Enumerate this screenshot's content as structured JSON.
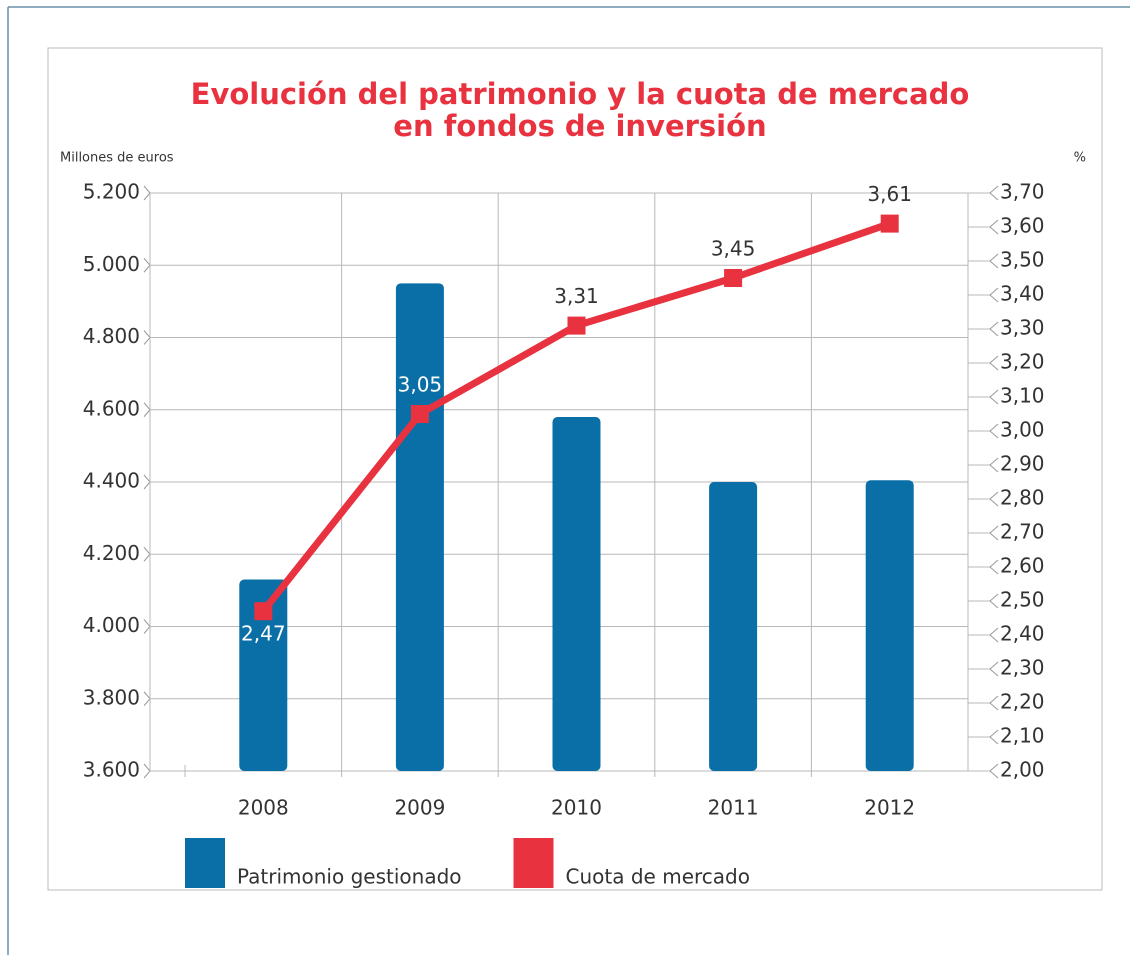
{
  "chart_data": {
    "type": "bar-line",
    "title": "Evolución del patrimonio y la cuota de mercado",
    "title_line2": "en fondos de inversión",
    "y_label": "Millones de euros",
    "y2_label": "%",
    "categories": [
      "2008",
      "2009",
      "2010",
      "2011",
      "2012"
    ],
    "series": [
      {
        "name": "Patrimonio gestionado",
        "color": "#0a6fa6",
        "type": "bar",
        "axis": "y",
        "values": [
          4130,
          4950,
          4580,
          4400,
          4405
        ]
      },
      {
        "name": "Cuota de mercado",
        "color": "#e8323f",
        "type": "line",
        "axis": "y2",
        "values": [
          2.47,
          3.05,
          3.31,
          3.45,
          3.61
        ],
        "value_labels": [
          "2,47",
          "3,05",
          "3,31",
          "3,45",
          "3,61"
        ]
      }
    ],
    "ylim": [
      3600,
      5200
    ],
    "yticks": [
      {
        "value": 3600,
        "label": "3.600"
      },
      {
        "value": 3800,
        "label": "3.800"
      },
      {
        "value": 4000,
        "label": "4.000"
      },
      {
        "value": 4200,
        "label": "4.200"
      },
      {
        "value": 4400,
        "label": "4.400"
      },
      {
        "value": 4600,
        "label": "4.600"
      },
      {
        "value": 4800,
        "label": "4.800"
      },
      {
        "value": 5000,
        "label": "5.000"
      },
      {
        "value": 5200,
        "label": "5.200"
      }
    ],
    "y2lim": [
      2.0,
      3.7
    ],
    "y2ticks": [
      {
        "value": 2.0,
        "label": "2,00"
      },
      {
        "value": 2.1,
        "label": "2,10"
      },
      {
        "value": 2.2,
        "label": "2,20"
      },
      {
        "value": 2.3,
        "label": "2,30"
      },
      {
        "value": 2.4,
        "label": "2,40"
      },
      {
        "value": 2.5,
        "label": "2,50"
      },
      {
        "value": 2.6,
        "label": "2,60"
      },
      {
        "value": 2.7,
        "label": "2,70"
      },
      {
        "value": 2.8,
        "label": "2,80"
      },
      {
        "value": 2.9,
        "label": "2,90"
      },
      {
        "value": 3.0,
        "label": "3,00"
      },
      {
        "value": 3.1,
        "label": "3,10"
      },
      {
        "value": 3.2,
        "label": "3,20"
      },
      {
        "value": 3.3,
        "label": "3,30"
      },
      {
        "value": 3.4,
        "label": "3,40"
      },
      {
        "value": 3.5,
        "label": "3,50"
      },
      {
        "value": 3.6,
        "label": "3,60"
      },
      {
        "value": 3.7,
        "label": "3,70"
      }
    ],
    "grid": true
  }
}
